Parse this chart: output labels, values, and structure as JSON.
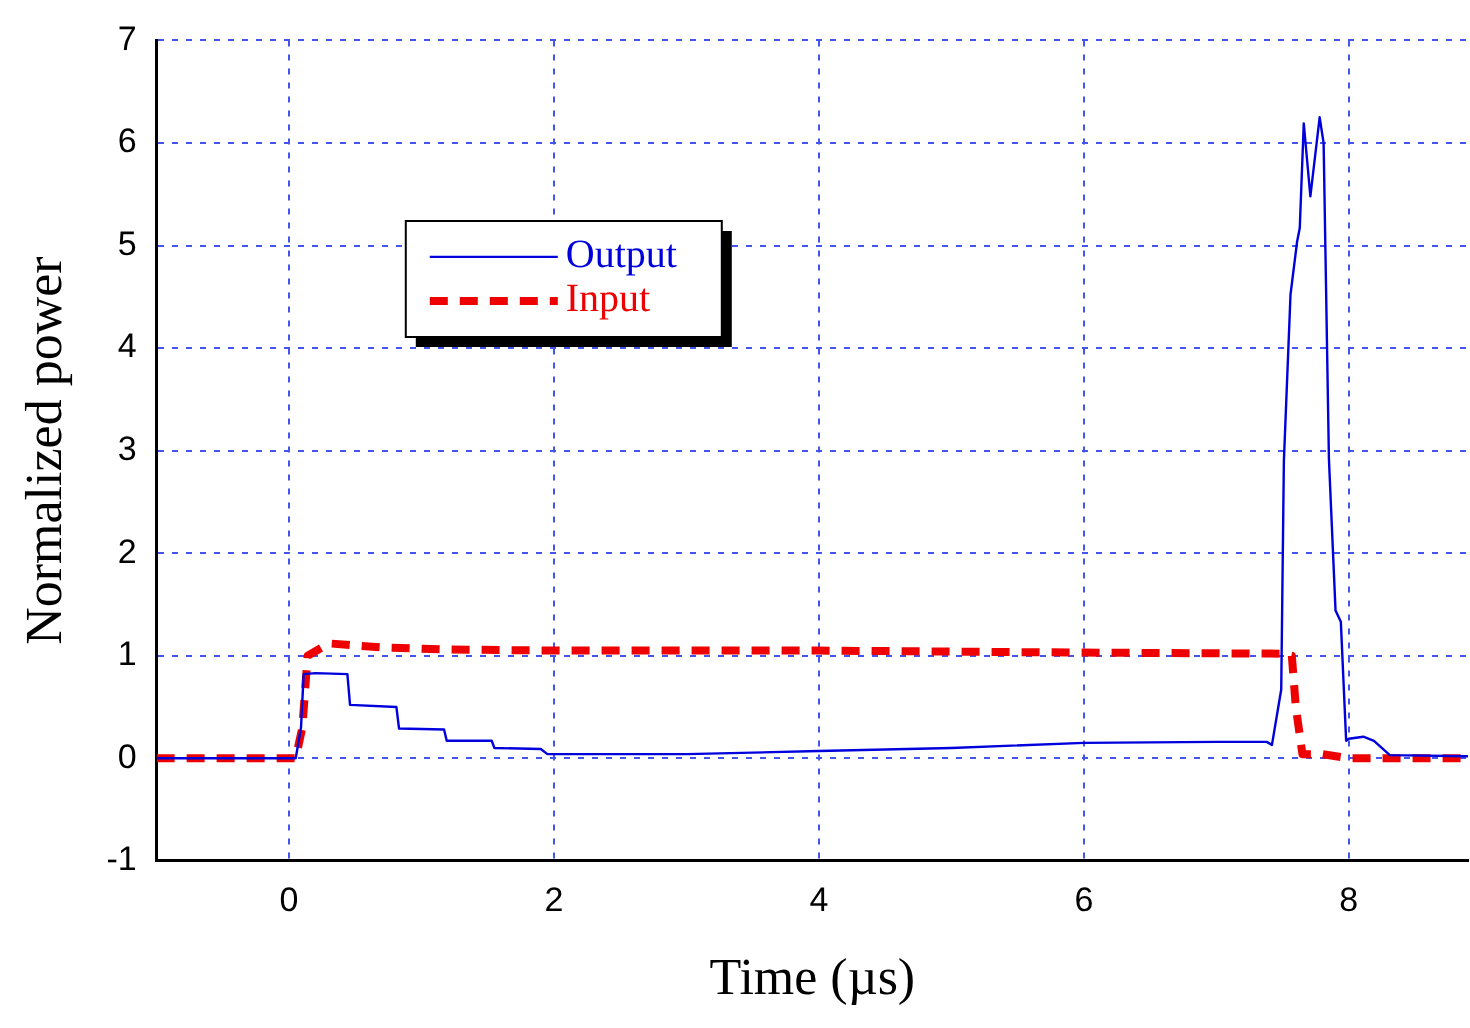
{
  "chart_data": {
    "type": "line",
    "xlabel": "Time (µs)",
    "ylabel": "Normalized power",
    "xlim": [
      -1,
      8.9
    ],
    "xticks": [
      0,
      2,
      4,
      6,
      8
    ],
    "ylim": [
      -1,
      7
    ],
    "yticks": [
      -1,
      0,
      1,
      2,
      3,
      4,
      5,
      6,
      7
    ],
    "grid": true,
    "legend": "top left",
    "marker": "none",
    "series": [
      {
        "name": "Output",
        "color": "#0000dd",
        "line_style": "solid",
        "x": [
          -1,
          0.05,
          0.09,
          0.11,
          0.2,
          0.44,
          0.46,
          0.81,
          0.83,
          1.17,
          1.19,
          1.53,
          1.55,
          1.9,
          1.95,
          3,
          4,
          5,
          6,
          7,
          7.38,
          7.42,
          7.49,
          7.51,
          7.56,
          7.61,
          7.63,
          7.66,
          7.71,
          7.78,
          7.81,
          7.85,
          7.9,
          7.94,
          7.98,
          8.0,
          8.11,
          8.19,
          8.31,
          8.9
        ],
        "values": [
          0,
          0,
          0.3,
          0.82,
          0.83,
          0.82,
          0.52,
          0.5,
          0.29,
          0.28,
          0.17,
          0.17,
          0.1,
          0.09,
          0.04,
          0.04,
          0.07,
          0.1,
          0.15,
          0.16,
          0.16,
          0.13,
          0.67,
          2.9,
          4.52,
          5.04,
          5.17,
          6.19,
          5.48,
          6.25,
          6,
          2.92,
          1.44,
          1.33,
          0.17,
          0.19,
          0.21,
          0.17,
          0.03,
          0.02
        ]
      },
      {
        "name": "Input",
        "color": "#ee0000",
        "line_style": "dashed",
        "x": [
          -1,
          0.05,
          0.1,
          0.14,
          0.3,
          0.7,
          1.2,
          2,
          4,
          6,
          7.5,
          7.57,
          7.6,
          7.65,
          7.8,
          8,
          8.9
        ],
        "values": [
          0,
          0,
          0.3,
          1.0,
          1.12,
          1.08,
          1.06,
          1.05,
          1.05,
          1.03,
          1.02,
          1.0,
          0.5,
          0.04,
          0.04,
          0,
          0
        ]
      }
    ]
  }
}
